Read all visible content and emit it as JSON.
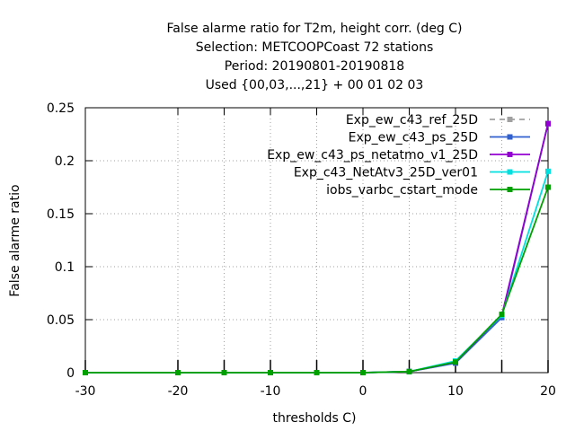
{
  "chart_data": {
    "type": "line",
    "title_lines": [
      "False alarme ratio  for T2m, height corr. (deg C)",
      "Selection: METCOOPCoast     72 stations",
      "Period: 20190801-20190818",
      "Used {00,03,...,21} + 00 01 02 03"
    ],
    "xlabel": "thresholds C)",
    "ylabel": "False alarme ratio",
    "xlim": [
      -30,
      20
    ],
    "ylim": [
      0,
      0.25
    ],
    "xticks": [
      -30,
      -20,
      -15,
      -10,
      -5,
      0,
      5,
      10,
      15,
      20
    ],
    "xtick_labels": [
      "-30",
      "-20",
      "-10",
      "0",
      "10",
      "20"
    ],
    "xtick_label_values": [
      -30,
      -20,
      -10,
      0,
      10,
      20
    ],
    "yticks": [
      0,
      0.05,
      0.1,
      0.15,
      0.2,
      0.25
    ],
    "ytick_labels": [
      "0",
      "0.05",
      "0.1",
      "0.15",
      "0.2",
      "0.25"
    ],
    "grid": true,
    "legend_position": "top-right",
    "x": [
      -30,
      -20,
      -15,
      -10,
      -5,
      0,
      5,
      10,
      15,
      20
    ],
    "series": [
      {
        "name": "Exp_ew_c43_ref_25D",
        "color": "#a0a0a0",
        "dash": true,
        "values": [
          0,
          0,
          0,
          0,
          0,
          0,
          0.001,
          0.009,
          0.053,
          0.235
        ]
      },
      {
        "name": "Exp_ew_c43_ps_25D",
        "color": "#3060d0",
        "dash": false,
        "values": [
          0,
          0,
          0,
          0,
          0,
          0,
          0.001,
          0.009,
          0.052,
          0.235
        ]
      },
      {
        "name": "Exp_ew_c43_ps_netatmo_v1_25D",
        "color": "#9400d3",
        "dash": false,
        "values": [
          0,
          0,
          0,
          0,
          0,
          0,
          0.001,
          0.01,
          0.054,
          0.235
        ]
      },
      {
        "name": "Exp_c43_NetAtv3_25D_ver01",
        "color": "#00e0e0",
        "dash": false,
        "values": [
          0,
          0,
          0,
          0,
          0,
          0,
          0.001,
          0.011,
          0.054,
          0.19
        ]
      },
      {
        "name": "iobs_varbc_cstart_mode",
        "color": "#00a000",
        "dash": false,
        "values": [
          0,
          0,
          0,
          0,
          0,
          0,
          0.001,
          0.01,
          0.055,
          0.175
        ]
      }
    ]
  }
}
